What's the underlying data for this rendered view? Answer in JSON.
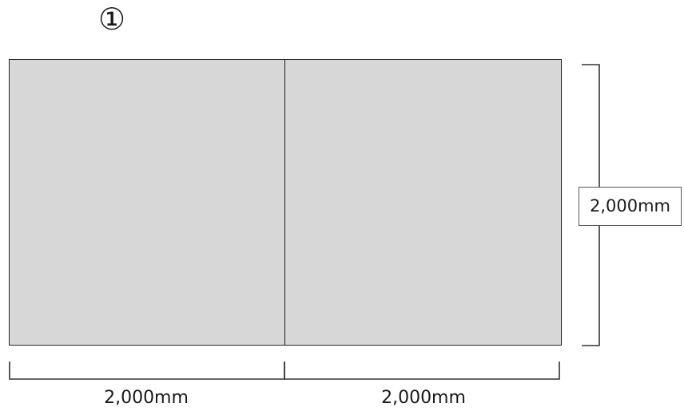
{
  "diagram": {
    "figure_number": "①",
    "width_left": "2,000mm",
    "width_right": "2,000mm",
    "height": "2,000mm"
  }
}
